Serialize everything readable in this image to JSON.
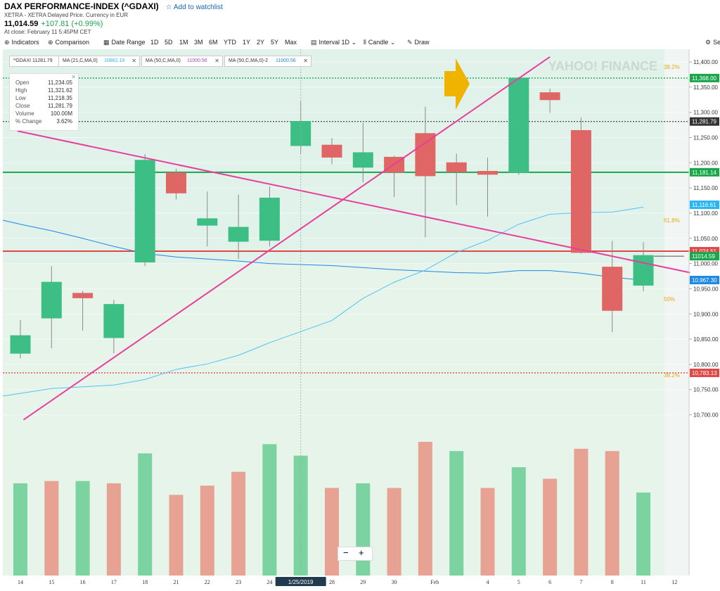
{
  "header": {
    "title": "DAX PERFORMANCE-INDEX (^GDAXI)",
    "watchlist": "Add to watchlist",
    "subtitle": "XETRA - XETRA Delayed Price. Currency in EUR",
    "price": "11,014.59",
    "change": "+107.81 (+0.99%)",
    "close_time": "At close: February 11 5:45PM CET"
  },
  "toolbar": {
    "indicators": "Indicators",
    "comparison": "Comparison",
    "date_range": "Date Range",
    "ranges": [
      "1D",
      "5D",
      "1M",
      "3M",
      "6M",
      "YTD",
      "1Y",
      "2Y",
      "5Y",
      "Max"
    ],
    "interval": "Interval",
    "interval_value": "1D",
    "candle": "Candle",
    "draw": "Draw",
    "settings": "Se"
  },
  "info_box": {
    "rows": [
      {
        "k": "Open",
        "v": "11,234.05"
      },
      {
        "k": "High",
        "v": "11,321.62"
      },
      {
        "k": "Low",
        "v": "11,218.35"
      },
      {
        "k": "Close",
        "v": "11,281.79"
      },
      {
        "k": "Volume",
        "v": "100.00M"
      },
      {
        "k": "% Change",
        "v": "3.62%"
      }
    ]
  },
  "legend": [
    {
      "label": "^GDAXI 11281.79",
      "value": "",
      "color": "#1e88e5"
    },
    {
      "label": "MA (21,C,MA,0)",
      "value": "10862.19",
      "color": "#29b6f6"
    },
    {
      "label": "MA (50,C,MA,0)",
      "value": "11000.56",
      "color": "#ab47bc"
    },
    {
      "label": "MA (50,C,MA,0)-2",
      "value": "11000.56",
      "color": "#1e88e5"
    }
  ],
  "zoom": {
    "minus": "−",
    "plus": "+"
  },
  "watermark": "YAHOO! FINANCE",
  "chart_data": {
    "type": "candlestick",
    "ylim": [
      10690,
      11410
    ],
    "y_ticks": [
      10700,
      10750,
      10800,
      10850,
      10900,
      10950,
      11000,
      11050,
      11100,
      11150,
      11200,
      11250,
      11300,
      11350,
      11400
    ],
    "x_labels": [
      "14",
      "15",
      "16",
      "17",
      "18",
      "21",
      "22",
      "23",
      "24",
      "1/25/2019",
      "28",
      "29",
      "30",
      "Feb",
      "4",
      "5",
      "6",
      "7",
      "8",
      "11",
      "12"
    ],
    "candles": [
      {
        "d": "14",
        "o": 10822,
        "h": 10888,
        "l": 10812,
        "c": 10857
      },
      {
        "d": "15",
        "o": 10892,
        "h": 10995,
        "l": 10832,
        "c": 10963
      },
      {
        "d": "16",
        "o": 10941,
        "h": 10946,
        "l": 10867,
        "c": 10932
      },
      {
        "d": "17",
        "o": 10853,
        "h": 10928,
        "l": 10822,
        "c": 10919
      },
      {
        "d": "18",
        "o": 11003,
        "h": 11217,
        "l": 10995,
        "c": 11205
      },
      {
        "d": "21",
        "o": 11180,
        "h": 11188,
        "l": 11127,
        "c": 11140
      },
      {
        "d": "22",
        "o": 11076,
        "h": 11143,
        "l": 11034,
        "c": 11089
      },
      {
        "d": "23",
        "o": 11044,
        "h": 11137,
        "l": 11009,
        "c": 11072
      },
      {
        "d": "24",
        "o": 11046,
        "h": 11153,
        "l": 11034,
        "c": 11130
      },
      {
        "d": "25",
        "o": 11234,
        "h": 11322,
        "l": 11218,
        "c": 11282
      },
      {
        "d": "28",
        "o": 11235,
        "h": 11249,
        "l": 11197,
        "c": 11211
      },
      {
        "d": "29",
        "o": 11191,
        "h": 11279,
        "l": 11161,
        "c": 11220
      },
      {
        "d": "30",
        "o": 11211,
        "h": 11214,
        "l": 11132,
        "c": 11181
      },
      {
        "d": "31",
        "o": 11258,
        "h": 11311,
        "l": 11052,
        "c": 11174
      },
      {
        "d": "Feb",
        "o": 11200,
        "h": 11218,
        "l": 11116,
        "c": 11182
      },
      {
        "d": "4",
        "o": 11183,
        "h": 11210,
        "l": 11093,
        "c": 11177
      },
      {
        "d": "5",
        "o": 11181,
        "h": 11370,
        "l": 11176,
        "c": 11368
      },
      {
        "d": "6",
        "o": 11339,
        "h": 11347,
        "l": 11299,
        "c": 11325
      },
      {
        "d": "7",
        "o": 11264,
        "h": 11290,
        "l": 11020,
        "c": 11022
      },
      {
        "d": "8",
        "o": 10993,
        "h": 11045,
        "l": 10864,
        "c": 10907
      },
      {
        "d": "11",
        "o": 10957,
        "h": 11042,
        "l": 10945,
        "c": 11016
      }
    ],
    "volume_direction": [
      "up",
      "down",
      "up",
      "down",
      "up",
      "down",
      "down",
      "down",
      "up",
      "up",
      "down",
      "up",
      "down",
      "down",
      "up",
      "down",
      "up",
      "down",
      "down",
      "down",
      "up"
    ],
    "volume_rel": [
      0.4,
      0.41,
      0.41,
      0.4,
      0.53,
      0.35,
      0.39,
      0.45,
      0.57,
      0.52,
      0.38,
      0.4,
      0.38,
      0.58,
      0.54,
      0.38,
      0.47,
      0.42,
      0.55,
      0.54,
      0.36
    ],
    "ma21": [
      null,
      null,
      null,
      null,
      10770,
      10790,
      10801,
      10818,
      10843,
      10865,
      10887,
      10931,
      10963,
      10987,
      11022,
      11046,
      11078,
      11098,
      11101,
      11102,
      11112
    ],
    "ma50": [
      11078,
      11065,
      11050,
      11034,
      11020,
      11013,
      11009,
      11005,
      11000,
      10998,
      10996,
      10992,
      10988,
      10985,
      10982,
      10981,
      10986,
      10986,
      10981,
      10973,
      10967
    ],
    "hlines": [
      {
        "y": 11368.0,
        "label": "11,368.00",
        "style": "dotted",
        "color": "#1aa64b"
      },
      {
        "y": 11281.79,
        "label": "11,281.79",
        "style": "dotted",
        "color": "#555555"
      },
      {
        "y": 11181.14,
        "label": "11,181.14",
        "style": "solid",
        "color": "#1aa64b"
      },
      {
        "y": 11024.51,
        "label": "11,024.51",
        "style": "solid",
        "color": "#e04848"
      },
      {
        "y": 10783.13,
        "label": "10,783.13",
        "style": "dotted",
        "color": "#e04848"
      }
    ],
    "price_tags": [
      {
        "y": 11116.61,
        "label": "11,116.61",
        "color": "#29b6f6"
      },
      {
        "y": 11014.59,
        "label": "11014.59",
        "color": "#1aa64b"
      },
      {
        "y": 10967.3,
        "label": "10,967.30",
        "color": "#1e88e5"
      }
    ],
    "fib_levels": [
      {
        "label": "38.2%",
        "y": 11390
      },
      {
        "label": "61.8%",
        "y": 11086
      },
      {
        "label": "50%",
        "y": 10930
      },
      {
        "label": "38.2%",
        "y": 10779
      }
    ],
    "trendlines": [
      {
        "from": {
          "i": -0.1,
          "y": 11263
        },
        "to": {
          "i": 21.5,
          "y": 10982
        },
        "color": "#e83e9c"
      },
      {
        "from": {
          "i": 0.1,
          "y": 10690
        },
        "to": {
          "i": 17,
          "y": 11410
        },
        "color": "#e83e9c"
      }
    ],
    "colors": {
      "up": "#3dbe84",
      "down": "#e06666",
      "vol_up": "#6fcf97",
      "vol_down": "#e8998a"
    }
  }
}
